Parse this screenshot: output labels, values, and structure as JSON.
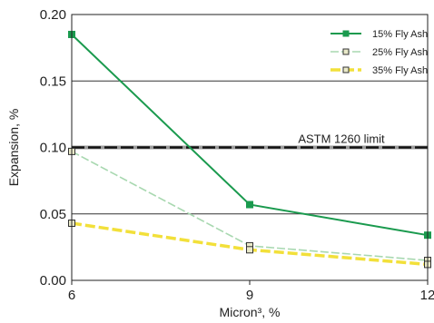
{
  "chart_data": {
    "type": "line",
    "xlabel": "Micron³, %",
    "ylabel": "Expansion, %",
    "x": [
      6,
      9,
      12
    ],
    "xticks": [
      "6",
      "9",
      "12"
    ],
    "yticks": [
      "0.00",
      "0.05",
      "0.10",
      "0.15",
      "0.20"
    ],
    "xlim": [
      6,
      12
    ],
    "ylim": [
      0,
      0.2
    ],
    "grid": "horizontal",
    "legend_position": "top-right",
    "series": [
      {
        "name": "15% Fly Ash",
        "values": [
          0.185,
          0.057,
          0.034
        ],
        "color": "#1a9a4e",
        "style": "solid",
        "marker": "filled-square"
      },
      {
        "name": "25% Fly Ash",
        "values": [
          0.097,
          0.026,
          0.015
        ],
        "color": "#a8d8b0",
        "style": "dashed",
        "marker": "open-square"
      },
      {
        "name": "35% Fly Ash",
        "values": [
          0.043,
          0.023,
          0.012
        ],
        "color": "#f2e03a",
        "style": "dashed",
        "marker": "open-square"
      }
    ],
    "reference_line": {
      "label": "ASTM 1260 limit",
      "value": 0.1
    }
  }
}
